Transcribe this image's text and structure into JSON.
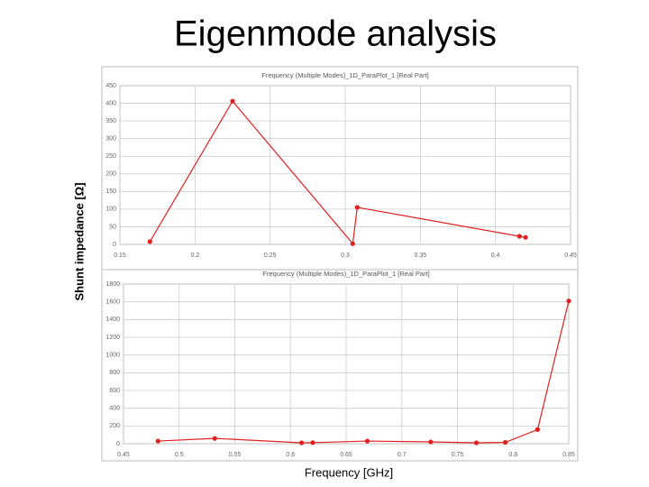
{
  "title": "Eigenmode analysis",
  "y_label": "Shunt impedance [Ω]",
  "x_label": "Frequency [GHz]",
  "chart_data": [
    {
      "type": "line",
      "title": "Frequency (Multiple Modes)_1D_ParaPlot_1 [Real Part]",
      "x": [
        0.17,
        0.225,
        0.305,
        0.308,
        0.416,
        0.42
      ],
      "series": [
        {
          "name": "Real Part",
          "color": "#e02020",
          "values": [
            8,
            406,
            2,
            105,
            23,
            20
          ]
        }
      ],
      "xlim": [
        0.15,
        0.45
      ],
      "xticks": [
        0.15,
        0.2,
        0.25,
        0.3,
        0.35,
        0.4,
        0.45
      ],
      "ylim": [
        0,
        450
      ],
      "yticks": [
        0,
        50,
        100,
        150,
        200,
        250,
        300,
        350,
        400,
        450
      ],
      "grid": true
    },
    {
      "type": "line",
      "title": "Frequency (Multiple Modes)_1D_ParaPlot_1 [Real Part]",
      "x": [
        0.481,
        0.532,
        0.61,
        0.62,
        0.669,
        0.726,
        0.767,
        0.793,
        0.822,
        0.85
      ],
      "series": [
        {
          "name": "Real Part",
          "color": "#e02020",
          "values": [
            30,
            60,
            10,
            12,
            30,
            20,
            10,
            15,
            160,
            1610
          ]
        }
      ],
      "xlim": [
        0.45,
        0.85
      ],
      "xticks": [
        0.45,
        0.5,
        0.55,
        0.6,
        0.65,
        0.7,
        0.75,
        0.8,
        0.85
      ],
      "ylim": [
        0,
        1800
      ],
      "yticks": [
        0,
        200,
        400,
        600,
        800,
        1000,
        1200,
        1400,
        1600,
        1800
      ],
      "grid": true
    }
  ]
}
